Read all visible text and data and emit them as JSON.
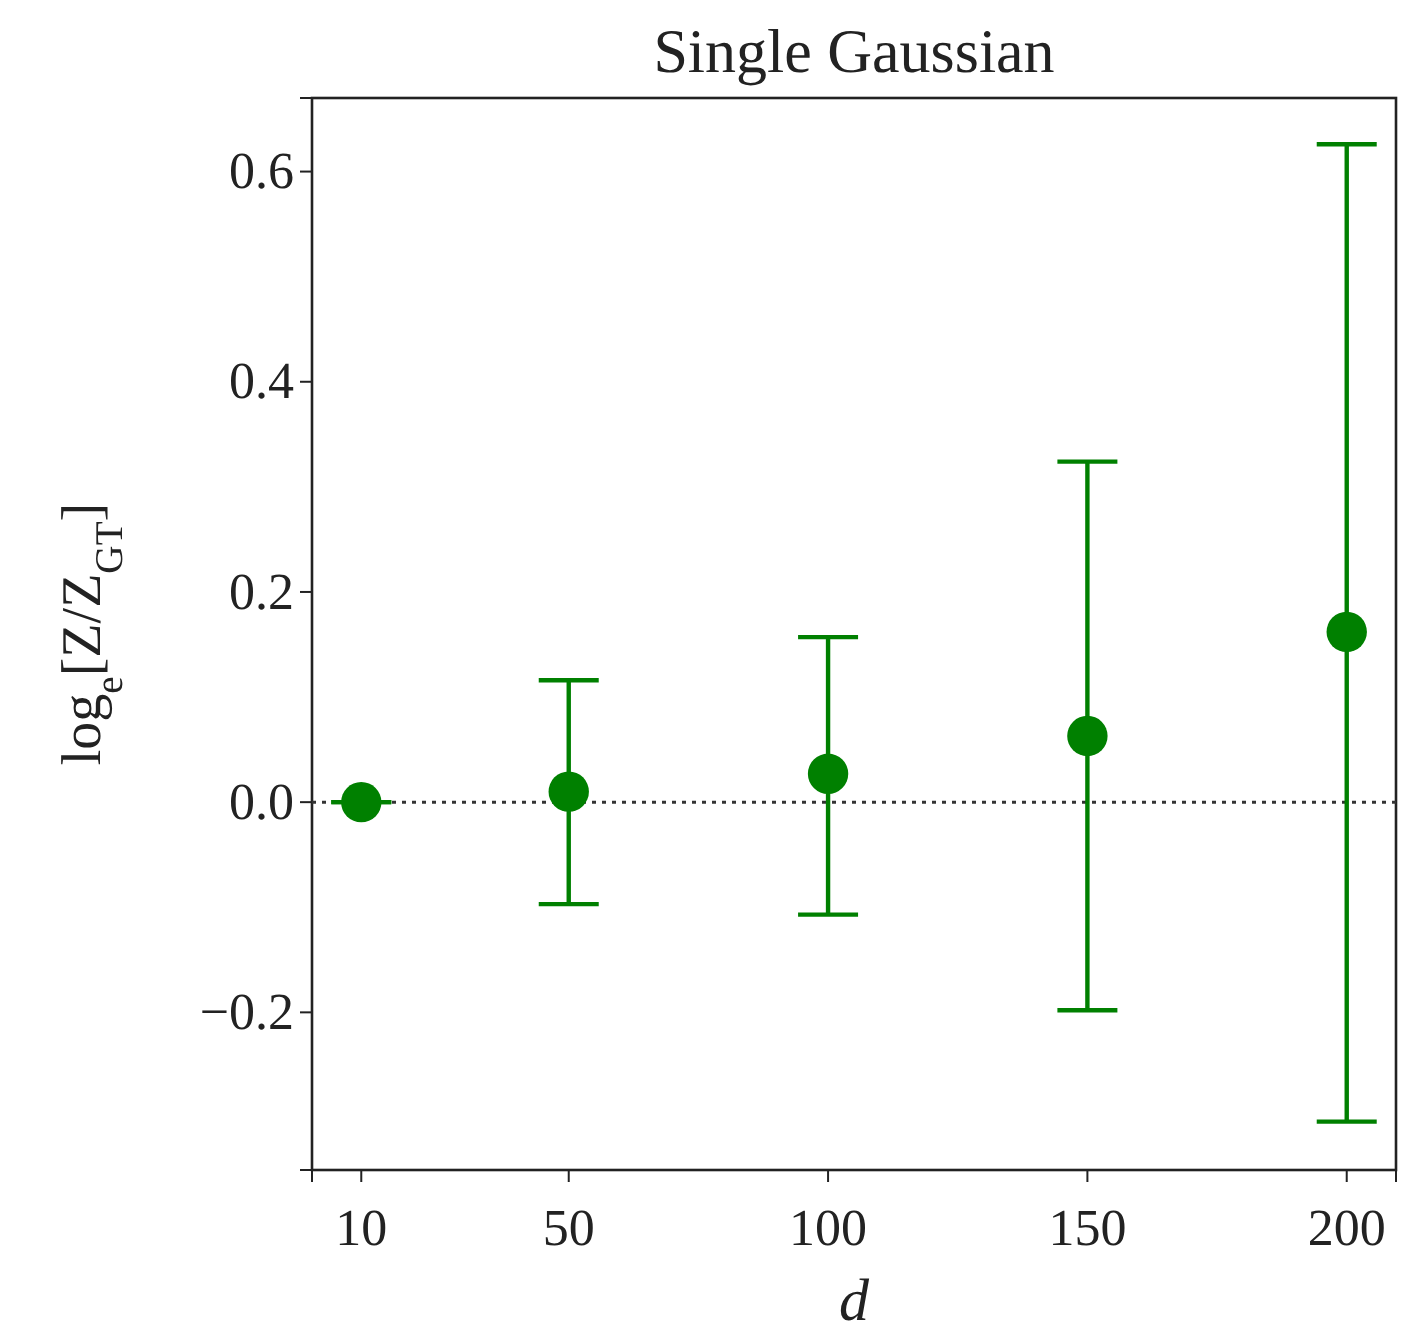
{
  "chart_data": {
    "type": "scatter",
    "title": "Single Gaussian",
    "xlabel": "d",
    "ylabel": "log$_{e}$[Z/Z$_{GT}$]",
    "x": [
      10,
      50,
      100,
      150,
      200
    ],
    "series": [
      {
        "color": "#008000",
        "values": [
          0.0,
          0.01,
          0.027,
          0.063,
          0.162
        ],
        "errors": [
          [
            0.0,
            0.0
          ],
          [
            -0.097,
            0.116
          ],
          [
            -0.107,
            0.157
          ],
          [
            -0.198,
            0.324
          ],
          [
            -0.304,
            0.626
          ]
        ]
      }
    ],
    "xlim": [
      0.5,
      209.5
    ],
    "xticks": [
      10,
      50,
      100,
      150,
      200
    ],
    "ylim": [
      -0.35,
      0.67
    ],
    "yticks": [
      {
        "value": -0.2,
        "label": "−0.2"
      },
      {
        "value": 0,
        "label": "0.0"
      },
      0.2,
      0.4,
      0.6
    ],
    "ref_lines": [
      {
        "axis": "y",
        "value": 0,
        "color": "#333333",
        "line_style": "dotted"
      }
    ],
    "marker": "circle",
    "grid": false
  }
}
